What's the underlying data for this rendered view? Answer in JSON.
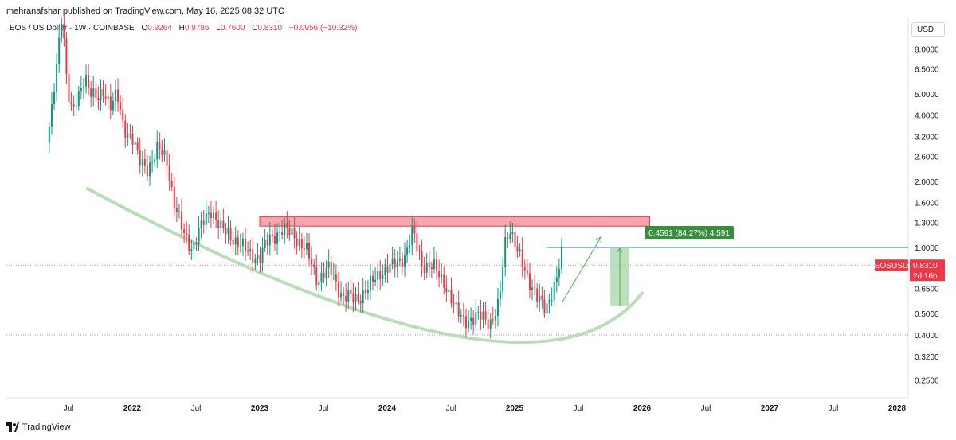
{
  "header": {
    "published": "mehranafshar published on TradingView.com, May 16, 2025 08:32 UTC"
  },
  "legend": {
    "symbol": "EOS / US Dollar · 1W · COINBASE",
    "o_label": "O",
    "o_value": "0.9264",
    "h_label": "H",
    "h_value": "0.9786",
    "l_label": "L",
    "l_value": "0.7600",
    "c_label": "C",
    "c_value": "0.8310",
    "change": "−0.0956 (−10.32%)"
  },
  "currency_button": "USD",
  "footer": {
    "brand": "TradingView"
  },
  "colors": {
    "up": "#089981",
    "down": "#f23645",
    "resistance_zone": "#f7a5ac",
    "curve": "#b7dfb5",
    "target_box": "#a5d6a7",
    "level_line": "#2962ff"
  },
  "chart_data": {
    "type": "candlestick",
    "scale": "log",
    "symbol": "EOSUSD",
    "interval": "1W",
    "y_ticks": [
      "8.0000",
      "6.5000",
      "5.0000",
      "4.0000",
      "3.2000",
      "2.6000",
      "2.0000",
      "1.6000",
      "1.3000",
      "1.0000",
      "0.6500",
      "0.5000",
      "0.4000",
      "0.3200",
      "0.2500"
    ],
    "x_ticks": [
      "Jul",
      "2022",
      "Jul",
      "2023",
      "Jul",
      "2024",
      "Jul",
      "2025",
      "Jul",
      "2026",
      "Jul",
      "2027",
      "Jul",
      "2028"
    ],
    "ylim": [
      0.21,
      14.0
    ],
    "price_label": {
      "symbol": "EOSUSD",
      "value": "0.8310",
      "countdown": "2d 16h",
      "price": 0.831
    },
    "price_path": [
      {
        "t": 2021.33,
        "p": 3.0
      },
      {
        "t": 2021.37,
        "p": 4.2
      },
      {
        "t": 2021.41,
        "p": 6.8
      },
      {
        "t": 2021.45,
        "p": 12.0
      },
      {
        "t": 2021.49,
        "p": 5.5
      },
      {
        "t": 2021.53,
        "p": 4.0
      },
      {
        "t": 2021.58,
        "p": 4.8
      },
      {
        "t": 2021.63,
        "p": 6.2
      },
      {
        "t": 2021.68,
        "p": 5.0
      },
      {
        "t": 2021.73,
        "p": 4.6
      },
      {
        "t": 2021.78,
        "p": 5.2
      },
      {
        "t": 2021.83,
        "p": 4.5
      },
      {
        "t": 2021.88,
        "p": 4.9
      },
      {
        "t": 2021.93,
        "p": 3.5
      },
      {
        "t": 2022.0,
        "p": 3.2
      },
      {
        "t": 2022.06,
        "p": 2.4
      },
      {
        "t": 2022.12,
        "p": 2.3
      },
      {
        "t": 2022.2,
        "p": 2.8
      },
      {
        "t": 2022.27,
        "p": 2.5
      },
      {
        "t": 2022.33,
        "p": 1.6
      },
      {
        "t": 2022.4,
        "p": 1.15
      },
      {
        "t": 2022.47,
        "p": 1.0
      },
      {
        "t": 2022.53,
        "p": 1.2
      },
      {
        "t": 2022.62,
        "p": 1.5
      },
      {
        "t": 2022.7,
        "p": 1.2
      },
      {
        "t": 2022.8,
        "p": 1.1
      },
      {
        "t": 2022.9,
        "p": 0.95
      },
      {
        "t": 2023.0,
        "p": 0.9
      },
      {
        "t": 2023.08,
        "p": 1.1
      },
      {
        "t": 2023.17,
        "p": 1.2
      },
      {
        "t": 2023.27,
        "p": 1.15
      },
      {
        "t": 2023.37,
        "p": 0.95
      },
      {
        "t": 2023.45,
        "p": 0.72
      },
      {
        "t": 2023.55,
        "p": 0.8
      },
      {
        "t": 2023.65,
        "p": 0.6
      },
      {
        "t": 2023.75,
        "p": 0.58
      },
      {
        "t": 2023.85,
        "p": 0.65
      },
      {
        "t": 2023.95,
        "p": 0.78
      },
      {
        "t": 2024.05,
        "p": 0.82
      },
      {
        "t": 2024.15,
        "p": 0.95
      },
      {
        "t": 2024.2,
        "p": 1.18
      },
      {
        "t": 2024.27,
        "p": 0.85
      },
      {
        "t": 2024.37,
        "p": 0.8
      },
      {
        "t": 2024.45,
        "p": 0.7
      },
      {
        "t": 2024.53,
        "p": 0.52
      },
      {
        "t": 2024.6,
        "p": 0.48
      },
      {
        "t": 2024.67,
        "p": 0.46
      },
      {
        "t": 2024.75,
        "p": 0.5
      },
      {
        "t": 2024.82,
        "p": 0.45
      },
      {
        "t": 2024.88,
        "p": 0.55
      },
      {
        "t": 2024.92,
        "p": 1.05
      },
      {
        "t": 2024.96,
        "p": 1.25
      },
      {
        "t": 2025.02,
        "p": 0.95
      },
      {
        "t": 2025.1,
        "p": 0.75
      },
      {
        "t": 2025.18,
        "p": 0.58
      },
      {
        "t": 2025.24,
        "p": 0.52
      },
      {
        "t": 2025.29,
        "p": 0.63
      },
      {
        "t": 2025.33,
        "p": 0.72
      },
      {
        "t": 2025.37,
        "p": 0.93
      },
      {
        "t": 2025.38,
        "p": 0.83
      }
    ],
    "annotations": {
      "resistance_zone": {
        "t_start": 2023.0,
        "t_end": 2026.06,
        "p_low": 1.25,
        "p_high": 1.38
      },
      "support_line": {
        "price": 0.4
      },
      "current_price_line": {
        "price": 0.831
      },
      "level_line": {
        "price": 1.0,
        "t_start": 2025.25
      },
      "target_box": {
        "t_start": 2025.75,
        "t_end": 2025.9,
        "p_low": 0.545,
        "p_high": 1.0
      },
      "target_label": "0.4591 (84.27%) 4,591",
      "arrow": {
        "t1": 2025.37,
        "p1": 0.56,
        "t2": 2025.68,
        "p2": 1.12
      },
      "curve": [
        {
          "t": 2021.65,
          "p": 1.85
        },
        {
          "t": 2022.3,
          "p": 0.98
        },
        {
          "t": 2023.0,
          "p": 0.64
        },
        {
          "t": 2023.7,
          "p": 0.48
        },
        {
          "t": 2024.5,
          "p": 0.4
        },
        {
          "t": 2025.0,
          "p": 0.41
        },
        {
          "t": 2025.5,
          "p": 0.48
        },
        {
          "t": 2026.0,
          "p": 0.62
        }
      ]
    }
  }
}
